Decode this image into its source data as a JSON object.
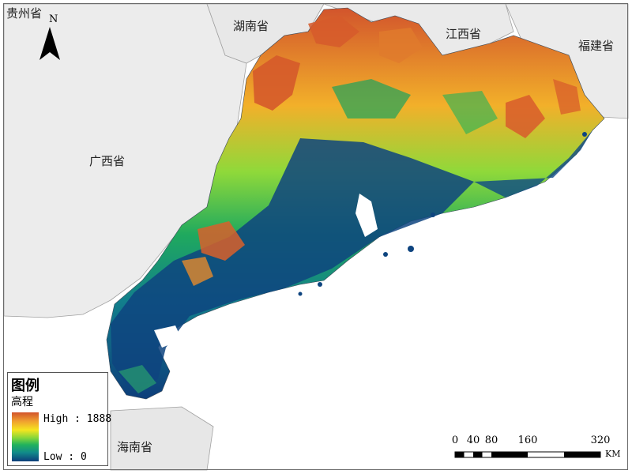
{
  "map": {
    "provinces": [
      {
        "key": "guizhou",
        "name": "贵州省"
      },
      {
        "key": "hunan",
        "name": "湖南省"
      },
      {
        "key": "jiangxi",
        "name": "江西省"
      },
      {
        "key": "fujian",
        "name": "福建省"
      },
      {
        "key": "guangxi",
        "name": "广西省"
      },
      {
        "key": "hainan",
        "name": "海南省"
      }
    ],
    "north_label": "N",
    "colors": {
      "neighbor_fill": "#e9e9e9",
      "boundary": "#9c9c9c",
      "low": "#0d3d7a",
      "mid": "#21b35c",
      "high": "#d2542c"
    }
  },
  "legend": {
    "title": "图例",
    "subtitle": "高程",
    "high_label": "High : 1888",
    "low_label": "Low : 0",
    "high_value": 1888,
    "low_value": 0
  },
  "scale_bar": {
    "ticks": [
      "0",
      "40",
      "80",
      "160",
      "320"
    ],
    "unit": "KM"
  }
}
